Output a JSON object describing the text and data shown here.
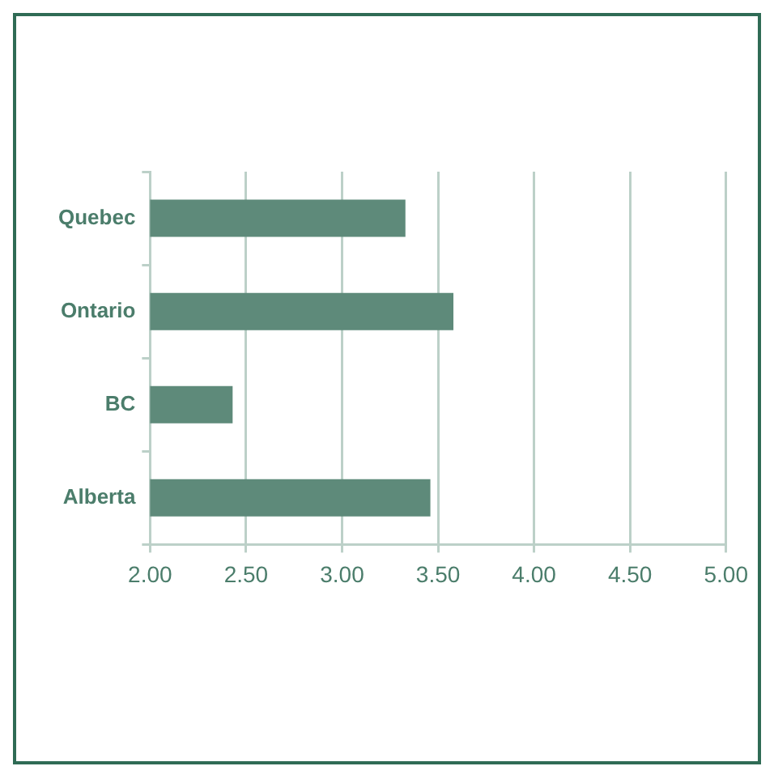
{
  "chart_data": {
    "type": "bar",
    "orientation": "horizontal",
    "categories": [
      "Quebec",
      "Ontario",
      "BC",
      "Alberta"
    ],
    "values": [
      3.33,
      3.58,
      2.43,
      3.46
    ],
    "color": "#5e8a7a",
    "xlim": [
      2,
      5
    ],
    "xticks": [
      {
        "value": 2,
        "label": "2.00"
      },
      {
        "value": 2.5,
        "label": "2.50"
      },
      {
        "value": 3,
        "label": "3.00"
      },
      {
        "value": 3.5,
        "label": "3.50"
      },
      {
        "value": 4,
        "label": "4.00"
      },
      {
        "value": 4.5,
        "label": "4.50"
      },
      {
        "value": 5,
        "label": "5.00"
      }
    ],
    "grid": "x"
  }
}
